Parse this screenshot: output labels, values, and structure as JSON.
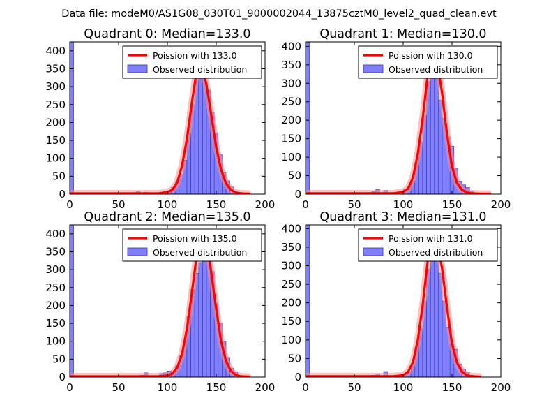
{
  "suptitle": "Data file: modeM0/AS1G08_030T01_9000002044_13875cztM0_level2_quad_clean.evt",
  "legend_observed_label": "Observed distribution",
  "colors": {
    "poisson": "#ff0000",
    "hist_fill": "#8080ff",
    "hist_edge": "#3333aa",
    "poisson_band": "#ff8c8c"
  },
  "chart_data": [
    {
      "type": "bar",
      "title": "Quadrant 0: Median=133.0",
      "xlim": [
        0,
        200
      ],
      "ylim": [
        0,
        425
      ],
      "xticks": [
        0,
        50,
        100,
        150,
        200
      ],
      "yticks": [
        0,
        50,
        100,
        150,
        200,
        250,
        300,
        350,
        400
      ],
      "median": 133.0,
      "legend": [
        "Poission with 133.0",
        "Observed distribution"
      ],
      "legend_loc": "upper right",
      "bin_width": 4,
      "bins": [
        [
          0,
          425
        ],
        [
          68,
          7
        ],
        [
          76,
          5
        ],
        [
          84,
          4
        ],
        [
          92,
          5
        ],
        [
          96,
          8
        ],
        [
          100,
          10
        ],
        [
          104,
          19
        ],
        [
          108,
          35
        ],
        [
          112,
          55
        ],
        [
          116,
          95
        ],
        [
          120,
          170
        ],
        [
          124,
          250
        ],
        [
          128,
          320
        ],
        [
          132,
          400
        ],
        [
          136,
          335
        ],
        [
          140,
          290
        ],
        [
          144,
          228
        ],
        [
          148,
          170
        ],
        [
          152,
          110
        ],
        [
          156,
          60
        ],
        [
          160,
          37
        ],
        [
          164,
          20
        ],
        [
          168,
          9
        ],
        [
          172,
          5
        ],
        [
          176,
          2
        ]
      ],
      "poisson_points": [
        [
          0,
          2
        ],
        [
          80,
          2
        ],
        [
          90,
          2
        ],
        [
          100,
          5
        ],
        [
          105,
          12
        ],
        [
          110,
          32
        ],
        [
          115,
          80
        ],
        [
          120,
          155
        ],
        [
          125,
          255
        ],
        [
          130,
          345
        ],
        [
          133,
          370
        ],
        [
          136,
          355
        ],
        [
          140,
          305
        ],
        [
          145,
          220
        ],
        [
          150,
          130
        ],
        [
          155,
          68
        ],
        [
          160,
          30
        ],
        [
          165,
          12
        ],
        [
          170,
          4
        ],
        [
          175,
          2
        ],
        [
          185,
          1
        ]
      ]
    },
    {
      "type": "bar",
      "title": "Quadrant 1: Median=130.0",
      "xlim": [
        0,
        200
      ],
      "ylim": [
        0,
        412
      ],
      "xticks": [
        0,
        50,
        100,
        150,
        200
      ],
      "yticks": [
        0,
        50,
        100,
        150,
        200,
        250,
        300,
        350,
        400
      ],
      "median": 130.0,
      "legend": [
        "Poission with 130.0",
        "Observed distribution"
      ],
      "legend_loc": "upper right",
      "bin_width": 4,
      "bins": [
        [
          0,
          412
        ],
        [
          68,
          7
        ],
        [
          72,
          13
        ],
        [
          80,
          10
        ],
        [
          88,
          4
        ],
        [
          92,
          5
        ],
        [
          96,
          6
        ],
        [
          100,
          12
        ],
        [
          104,
          20
        ],
        [
          108,
          35
        ],
        [
          112,
          85
        ],
        [
          116,
          140
        ],
        [
          120,
          215
        ],
        [
          124,
          305
        ],
        [
          128,
          385
        ],
        [
          132,
          330
        ],
        [
          136,
          255
        ],
        [
          140,
          205
        ],
        [
          144,
          155
        ],
        [
          148,
          130
        ],
        [
          152,
          70
        ],
        [
          156,
          35
        ],
        [
          160,
          25
        ],
        [
          164,
          18
        ],
        [
          168,
          8
        ],
        [
          172,
          3
        ]
      ],
      "poisson_points": [
        [
          0,
          2
        ],
        [
          80,
          2
        ],
        [
          90,
          2
        ],
        [
          100,
          6
        ],
        [
          105,
          15
        ],
        [
          110,
          45
        ],
        [
          115,
          110
        ],
        [
          120,
          205
        ],
        [
          125,
          320
        ],
        [
          130,
          385
        ],
        [
          133,
          375
        ],
        [
          136,
          340
        ],
        [
          140,
          270
        ],
        [
          145,
          160
        ],
        [
          150,
          75
        ],
        [
          155,
          30
        ],
        [
          160,
          12
        ],
        [
          165,
          5
        ],
        [
          170,
          2
        ],
        [
          180,
          1
        ],
        [
          190,
          1
        ]
      ]
    },
    {
      "type": "bar",
      "title": "Quadrant 2: Median=135.0",
      "xlim": [
        0,
        200
      ],
      "ylim": [
        0,
        425
      ],
      "xticks": [
        0,
        50,
        100,
        150,
        200
      ],
      "yticks": [
        0,
        50,
        100,
        150,
        200,
        250,
        300,
        350,
        400
      ],
      "median": 135.0,
      "legend": [
        "Poission with 135.0",
        "Observed distribution"
      ],
      "legend_loc": "upper right",
      "bin_width": 4,
      "bins": [
        [
          0,
          425
        ],
        [
          72,
          5
        ],
        [
          76,
          12
        ],
        [
          88,
          4
        ],
        [
          92,
          10
        ],
        [
          96,
          12
        ],
        [
          100,
          17
        ],
        [
          104,
          15
        ],
        [
          108,
          30
        ],
        [
          112,
          60
        ],
        [
          116,
          100
        ],
        [
          120,
          170
        ],
        [
          124,
          245
        ],
        [
          128,
          290
        ],
        [
          132,
          320
        ],
        [
          136,
          400
        ],
        [
          140,
          390
        ],
        [
          144,
          295
        ],
        [
          148,
          205
        ],
        [
          152,
          150
        ],
        [
          156,
          100
        ],
        [
          160,
          55
        ],
        [
          164,
          25
        ],
        [
          168,
          15
        ],
        [
          172,
          5
        ],
        [
          176,
          3
        ]
      ],
      "poisson_points": [
        [
          0,
          2
        ],
        [
          80,
          2
        ],
        [
          90,
          2
        ],
        [
          100,
          4
        ],
        [
          105,
          10
        ],
        [
          110,
          27
        ],
        [
          115,
          65
        ],
        [
          120,
          135
        ],
        [
          125,
          235
        ],
        [
          130,
          340
        ],
        [
          135,
          395
        ],
        [
          138,
          390
        ],
        [
          142,
          350
        ],
        [
          146,
          270
        ],
        [
          150,
          190
        ],
        [
          155,
          100
        ],
        [
          160,
          45
        ],
        [
          165,
          17
        ],
        [
          170,
          6
        ],
        [
          175,
          2
        ],
        [
          185,
          1
        ]
      ]
    },
    {
      "type": "bar",
      "title": "Quadrant 3: Median=131.0",
      "xlim": [
        0,
        200
      ],
      "ylim": [
        0,
        410
      ],
      "xticks": [
        0,
        50,
        100,
        150,
        200
      ],
      "yticks": [
        0,
        50,
        100,
        150,
        200,
        250,
        300,
        350,
        400
      ],
      "median": 131.0,
      "legend": [
        "Poission with 131.0",
        "Observed distribution"
      ],
      "legend_loc": "upper right",
      "bin_width": 4,
      "bins": [
        [
          0,
          410
        ],
        [
          68,
          5
        ],
        [
          72,
          8
        ],
        [
          80,
          15
        ],
        [
          84,
          4
        ],
        [
          92,
          5
        ],
        [
          96,
          6
        ],
        [
          100,
          8
        ],
        [
          104,
          14
        ],
        [
          108,
          30
        ],
        [
          112,
          80
        ],
        [
          116,
          130
        ],
        [
          120,
          205
        ],
        [
          124,
          290
        ],
        [
          128,
          390
        ],
        [
          132,
          385
        ],
        [
          136,
          280
        ],
        [
          140,
          205
        ],
        [
          144,
          135
        ],
        [
          148,
          90
        ],
        [
          152,
          75
        ],
        [
          156,
          35
        ],
        [
          160,
          22
        ],
        [
          164,
          12
        ],
        [
          168,
          5
        ],
        [
          172,
          2
        ]
      ],
      "poisson_points": [
        [
          0,
          2
        ],
        [
          80,
          2
        ],
        [
          90,
          2
        ],
        [
          100,
          5
        ],
        [
          105,
          14
        ],
        [
          110,
          40
        ],
        [
          115,
          100
        ],
        [
          120,
          195
        ],
        [
          125,
          310
        ],
        [
          130,
          385
        ],
        [
          132,
          385
        ],
        [
          135,
          365
        ],
        [
          140,
          290
        ],
        [
          145,
          185
        ],
        [
          150,
          90
        ],
        [
          155,
          40
        ],
        [
          160,
          15
        ],
        [
          165,
          5
        ],
        [
          170,
          2
        ],
        [
          180,
          1
        ]
      ]
    }
  ]
}
